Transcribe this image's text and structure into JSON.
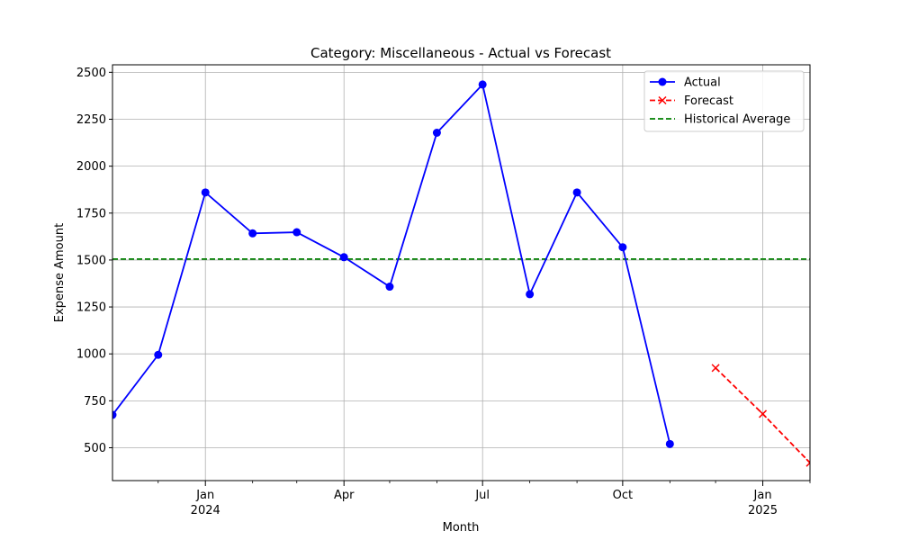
{
  "chart_data": {
    "type": "line",
    "title": "Category: Miscellaneous - Actual vs Forecast",
    "xlabel": "Month",
    "ylabel": "Expense Amount",
    "xlim": [
      "2023-11-01",
      "2025-02-01"
    ],
    "ylim": [
      325,
      2540
    ],
    "grid": true,
    "legend_position": "top-right",
    "x_ticks_major": [
      {
        "date": "2024-01-01",
        "label": "Jan",
        "sublabel": "2024"
      },
      {
        "date": "2024-04-01",
        "label": "Apr",
        "sublabel": ""
      },
      {
        "date": "2024-07-01",
        "label": "Jul",
        "sublabel": ""
      },
      {
        "date": "2024-10-01",
        "label": "Oct",
        "sublabel": ""
      },
      {
        "date": "2025-01-01",
        "label": "Jan",
        "sublabel": "2025"
      }
    ],
    "x_ticks_minor": [
      "2023-12-01",
      "2024-02-01",
      "2024-03-01",
      "2024-05-01",
      "2024-06-01",
      "2024-08-01",
      "2024-09-01",
      "2024-11-01",
      "2024-12-01",
      "2025-02-01"
    ],
    "y_ticks": [
      500,
      750,
      1000,
      1250,
      1500,
      1750,
      2000,
      2250,
      2500
    ],
    "series": [
      {
        "name": "Actual",
        "style": "solid",
        "marker": "circle",
        "color": "#0000ff",
        "points": [
          {
            "x": "2023-11-01",
            "y": 675
          },
          {
            "x": "2023-12-01",
            "y": 995
          },
          {
            "x": "2024-01-01",
            "y": 1860
          },
          {
            "x": "2024-02-01",
            "y": 1642
          },
          {
            "x": "2024-03-01",
            "y": 1648
          },
          {
            "x": "2024-04-01",
            "y": 1515
          },
          {
            "x": "2024-05-01",
            "y": 1358
          },
          {
            "x": "2024-06-01",
            "y": 2178
          },
          {
            "x": "2024-07-01",
            "y": 2435
          },
          {
            "x": "2024-08-01",
            "y": 1318
          },
          {
            "x": "2024-09-01",
            "y": 1860
          },
          {
            "x": "2024-10-01",
            "y": 1568
          },
          {
            "x": "2024-11-01",
            "y": 520
          }
        ]
      },
      {
        "name": "Forecast",
        "style": "dashed",
        "marker": "x",
        "color": "#ff0000",
        "points": [
          {
            "x": "2024-12-01",
            "y": 925
          },
          {
            "x": "2025-01-01",
            "y": 680
          },
          {
            "x": "2025-02-01",
            "y": 420
          }
        ]
      },
      {
        "name": "Historical Average",
        "style": "dashed",
        "marker": "none",
        "color": "#008000",
        "constant_y": 1505
      }
    ]
  }
}
